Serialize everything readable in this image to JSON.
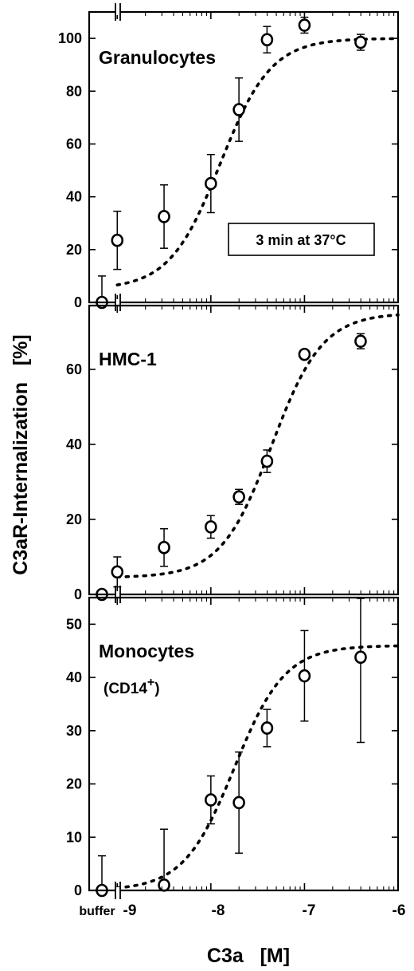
{
  "chart_data": [
    {
      "type": "scatter",
      "panel_label": "Granulocytes",
      "annotation": "3 min at 37°C",
      "ylim": [
        0,
        110
      ],
      "yticks": [
        "0",
        "20",
        "40",
        "60",
        "80",
        "100"
      ],
      "points": [
        {
          "x": "buffer",
          "y": 0,
          "err": 10
        },
        {
          "x": -9.0,
          "y": 23.5,
          "err": 11
        },
        {
          "x": -8.5,
          "y": 32.5,
          "err": 12
        },
        {
          "x": -8.0,
          "y": 45,
          "err": 11
        },
        {
          "x": -7.7,
          "y": 73,
          "err": 12
        },
        {
          "x": -7.4,
          "y": 99.5,
          "err": 5
        },
        {
          "x": -7.0,
          "y": 105,
          "err": 3
        },
        {
          "x": -6.4,
          "y": 98.5,
          "err": 3
        }
      ],
      "fit_curve": {
        "bottom": 5,
        "top": 100,
        "ec50_log": -7.9,
        "hill": 1.6
      }
    },
    {
      "type": "scatter",
      "panel_label": "HMC-1",
      "ylim": [
        0,
        77
      ],
      "yticks": [
        "0",
        "20",
        "40",
        "60"
      ],
      "points": [
        {
          "x": "buffer",
          "y": 0,
          "err": 0
        },
        {
          "x": -9.0,
          "y": 6,
          "err": 4
        },
        {
          "x": -8.5,
          "y": 12.5,
          "err": 5
        },
        {
          "x": -8.0,
          "y": 18,
          "err": 3
        },
        {
          "x": -7.7,
          "y": 26,
          "err": 2
        },
        {
          "x": -7.4,
          "y": 35.5,
          "err": 3
        },
        {
          "x": -7.0,
          "y": 64,
          "err": 1
        },
        {
          "x": -6.4,
          "y": 67.5,
          "err": 2
        }
      ],
      "fit_curve": {
        "bottom": 4.5,
        "top": 75,
        "ec50_log": -7.35,
        "hill": 1.6
      }
    },
    {
      "type": "scatter",
      "panel_label": "Monocytes",
      "panel_sublabel": "(CD14",
      "panel_sublabel_sup": "+",
      "panel_sublabel_end": ")",
      "ylim": [
        0,
        55
      ],
      "yticks": [
        "0",
        "10",
        "20",
        "30",
        "40",
        "50"
      ],
      "points": [
        {
          "x": "buffer",
          "y": 0,
          "err": 6.5
        },
        {
          "x": -8.5,
          "y": 1,
          "err": 10.5
        },
        {
          "x": -8.0,
          "y": 17,
          "err": 4.5
        },
        {
          "x": -7.7,
          "y": 16.5,
          "err": 9.5
        },
        {
          "x": -7.4,
          "y": 30.5,
          "err": 3.5
        },
        {
          "x": -7.0,
          "y": 40.3,
          "err": 8.5
        },
        {
          "x": -6.4,
          "y": 43.8,
          "err": 16
        }
      ],
      "fit_curve": {
        "bottom": 0,
        "top": 46,
        "ec50_log": -7.75,
        "hill": 1.6
      }
    }
  ],
  "xaxis": {
    "label": "C3a   [M]",
    "tick_labels": [
      "buffer",
      "-9",
      "-8",
      "-7",
      "-6"
    ],
    "xlim": [
      -9.3,
      -6.0
    ]
  },
  "yaxis": {
    "label": "C3aR-Internalization   [%]"
  }
}
